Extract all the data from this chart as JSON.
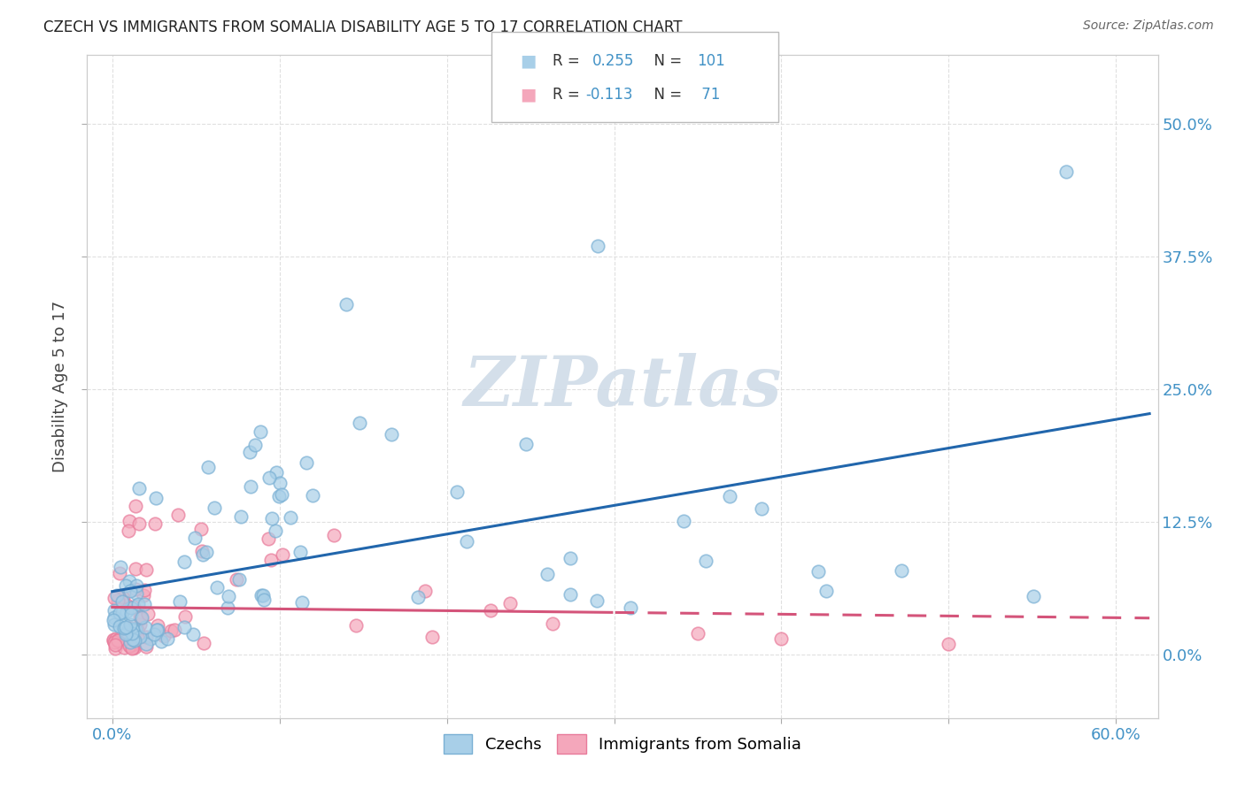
{
  "title": "CZECH VS IMMIGRANTS FROM SOMALIA DISABILITY AGE 5 TO 17 CORRELATION CHART",
  "source": "Source: ZipAtlas.com",
  "xlabel_ticks_pos": [
    0.0,
    0.6
  ],
  "xlabel_ticks_labels": [
    "0.0%",
    "60.0%"
  ],
  "ylabel_ticks": [
    "0.0%",
    "12.5%",
    "25.0%",
    "37.5%",
    "50.0%"
  ],
  "ylabel_vals": [
    0.0,
    0.125,
    0.25,
    0.375,
    0.5
  ],
  "xlim": [
    -0.015,
    0.625
  ],
  "ylim": [
    -0.06,
    0.565
  ],
  "ylabel": "Disability Age 5 to 17",
  "watermark": "ZIPatlas",
  "legend_r1": "R = 0.255",
  "legend_n1": "N = 101",
  "legend_r2": "R = -0.113",
  "legend_n2": "N =  71",
  "blue_scatter_color": "#a8cfe8",
  "blue_edge_color": "#7ab0d4",
  "pink_scatter_color": "#f4a7bb",
  "pink_edge_color": "#e87a9a",
  "line_blue": "#2166ac",
  "line_pink": "#d4547a",
  "tick_color": "#4292c6",
  "title_color": "#222222",
  "source_color": "#666666",
  "grid_color": "#dddddd",
  "legend_text_color": "#333333",
  "legend_val_color": "#4292c6",
  "watermark_color": "#d0dce8"
}
